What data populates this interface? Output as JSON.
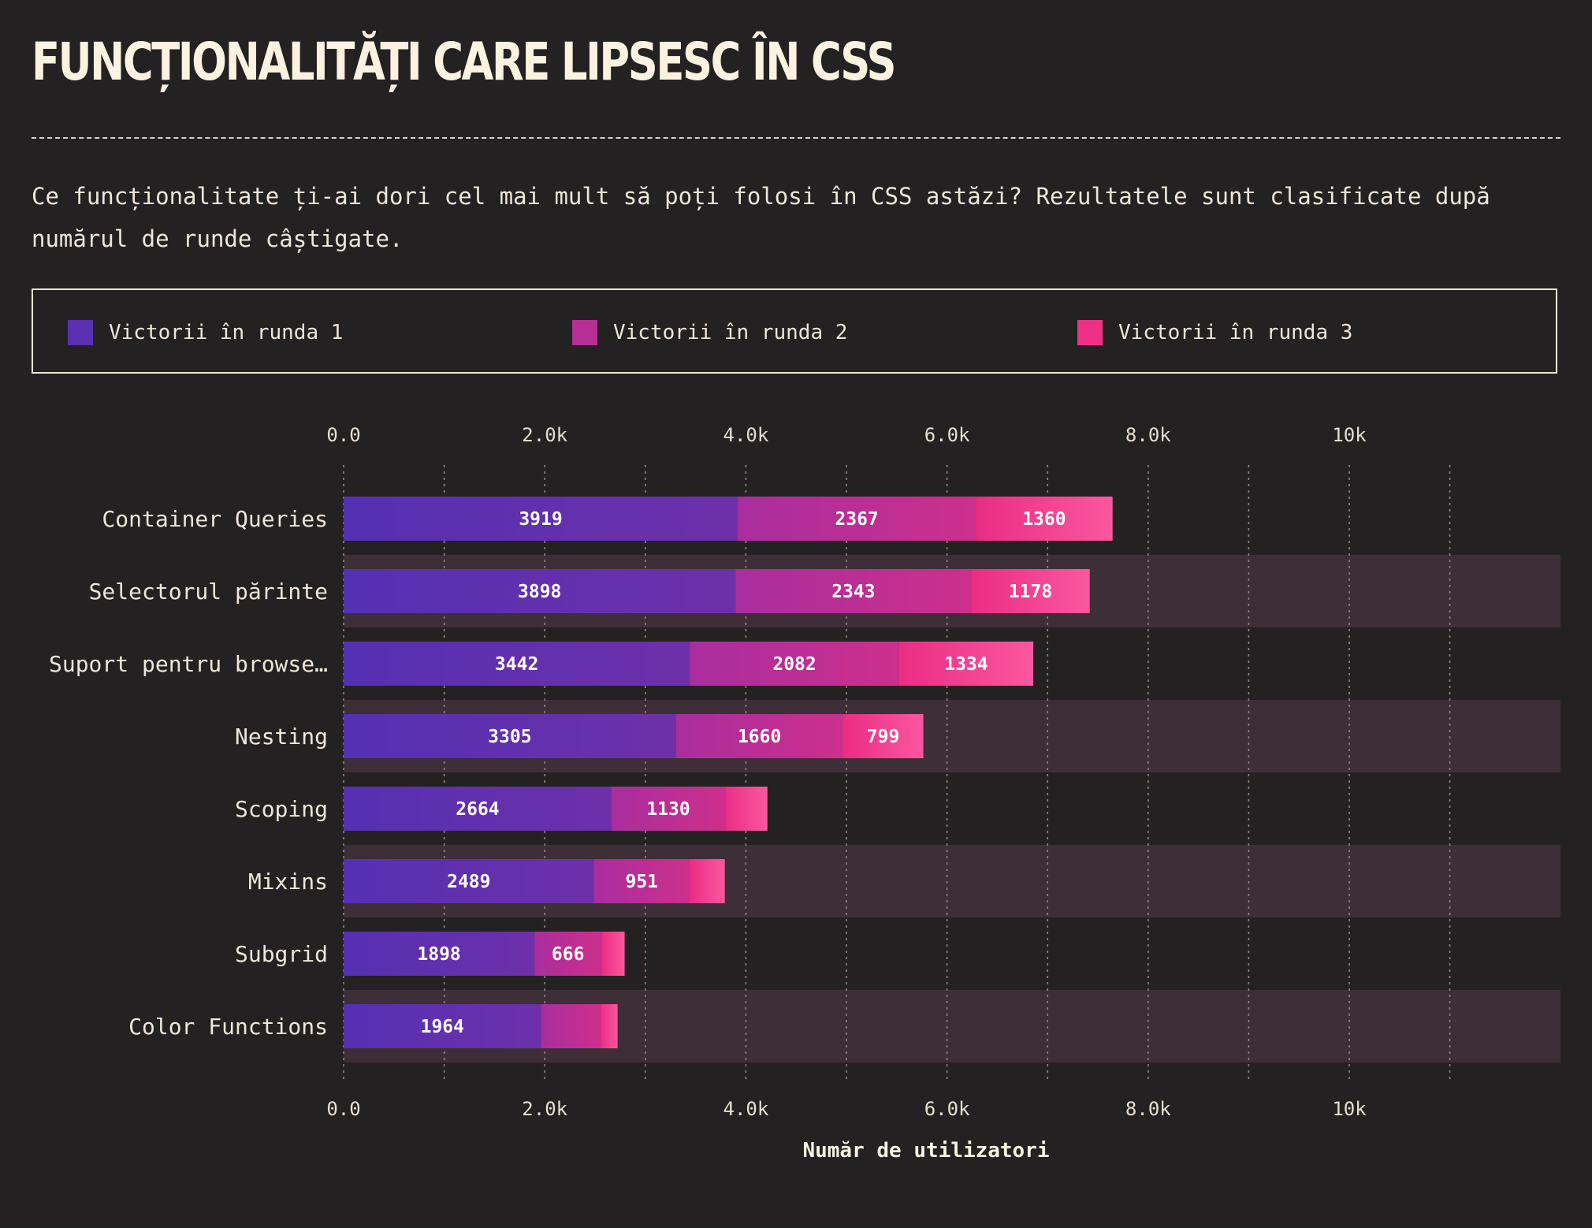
{
  "header": {
    "title": "FUNCȚIONALITĂȚI CARE LIPSESC ÎN CSS",
    "subtitle": "Ce funcționalitate ți-ai dori cel mai mult să poți folosi în CSS astăzi? Rezultatele sunt clasificate după numărul de runde câștigate."
  },
  "legend": [
    {
      "label": "Victorii în runda 1",
      "color": "#5a30b0"
    },
    {
      "label": "Victorii în runda 2",
      "color": "#b62e96"
    },
    {
      "label": "Victorii în runda 3",
      "color": "#ee3187"
    }
  ],
  "chart_data": {
    "type": "bar",
    "orientation": "horizontal",
    "stacked": true,
    "categories": [
      "Container Queries",
      "Selectorul părinte",
      "Suport pentru browse…",
      "Nesting",
      "Scoping",
      "Mixins",
      "Subgrid",
      "Color Functions"
    ],
    "series": [
      {
        "name": "Victorii în runda 1",
        "values": [
          3919,
          3898,
          3442,
          3305,
          2664,
          2489,
          1898,
          1964
        ]
      },
      {
        "name": "Victorii în runda 2",
        "values": [
          2367,
          2343,
          2082,
          1660,
          1130,
          951,
          666,
          590
        ]
      },
      {
        "name": "Victorii în runda 3",
        "values": [
          1360,
          1178,
          1334,
          799,
          420,
          350,
          230,
          170
        ]
      }
    ],
    "value_labels": [
      [
        "3919",
        "2367",
        "1360"
      ],
      [
        "3898",
        "2343",
        "1178"
      ],
      [
        "3442",
        "2082",
        "1334"
      ],
      [
        "3305",
        "1660",
        "799"
      ],
      [
        "2664",
        "1130",
        ""
      ],
      [
        "2489",
        "951",
        ""
      ],
      [
        "1898",
        "666",
        ""
      ],
      [
        "1964",
        "",
        ""
      ]
    ],
    "xlim": [
      0,
      12100
    ],
    "ticks": [
      0,
      2000,
      4000,
      6000,
      8000,
      10000
    ],
    "tick_labels": [
      "0.0",
      "2.0k",
      "4.0k",
      "6.0k",
      "8.0k",
      "10k"
    ],
    "minor_gridlines": [
      1000,
      3000,
      5000,
      7000,
      9000,
      11000
    ],
    "xlabel": "Număr de utilizatori",
    "grid": true
  }
}
